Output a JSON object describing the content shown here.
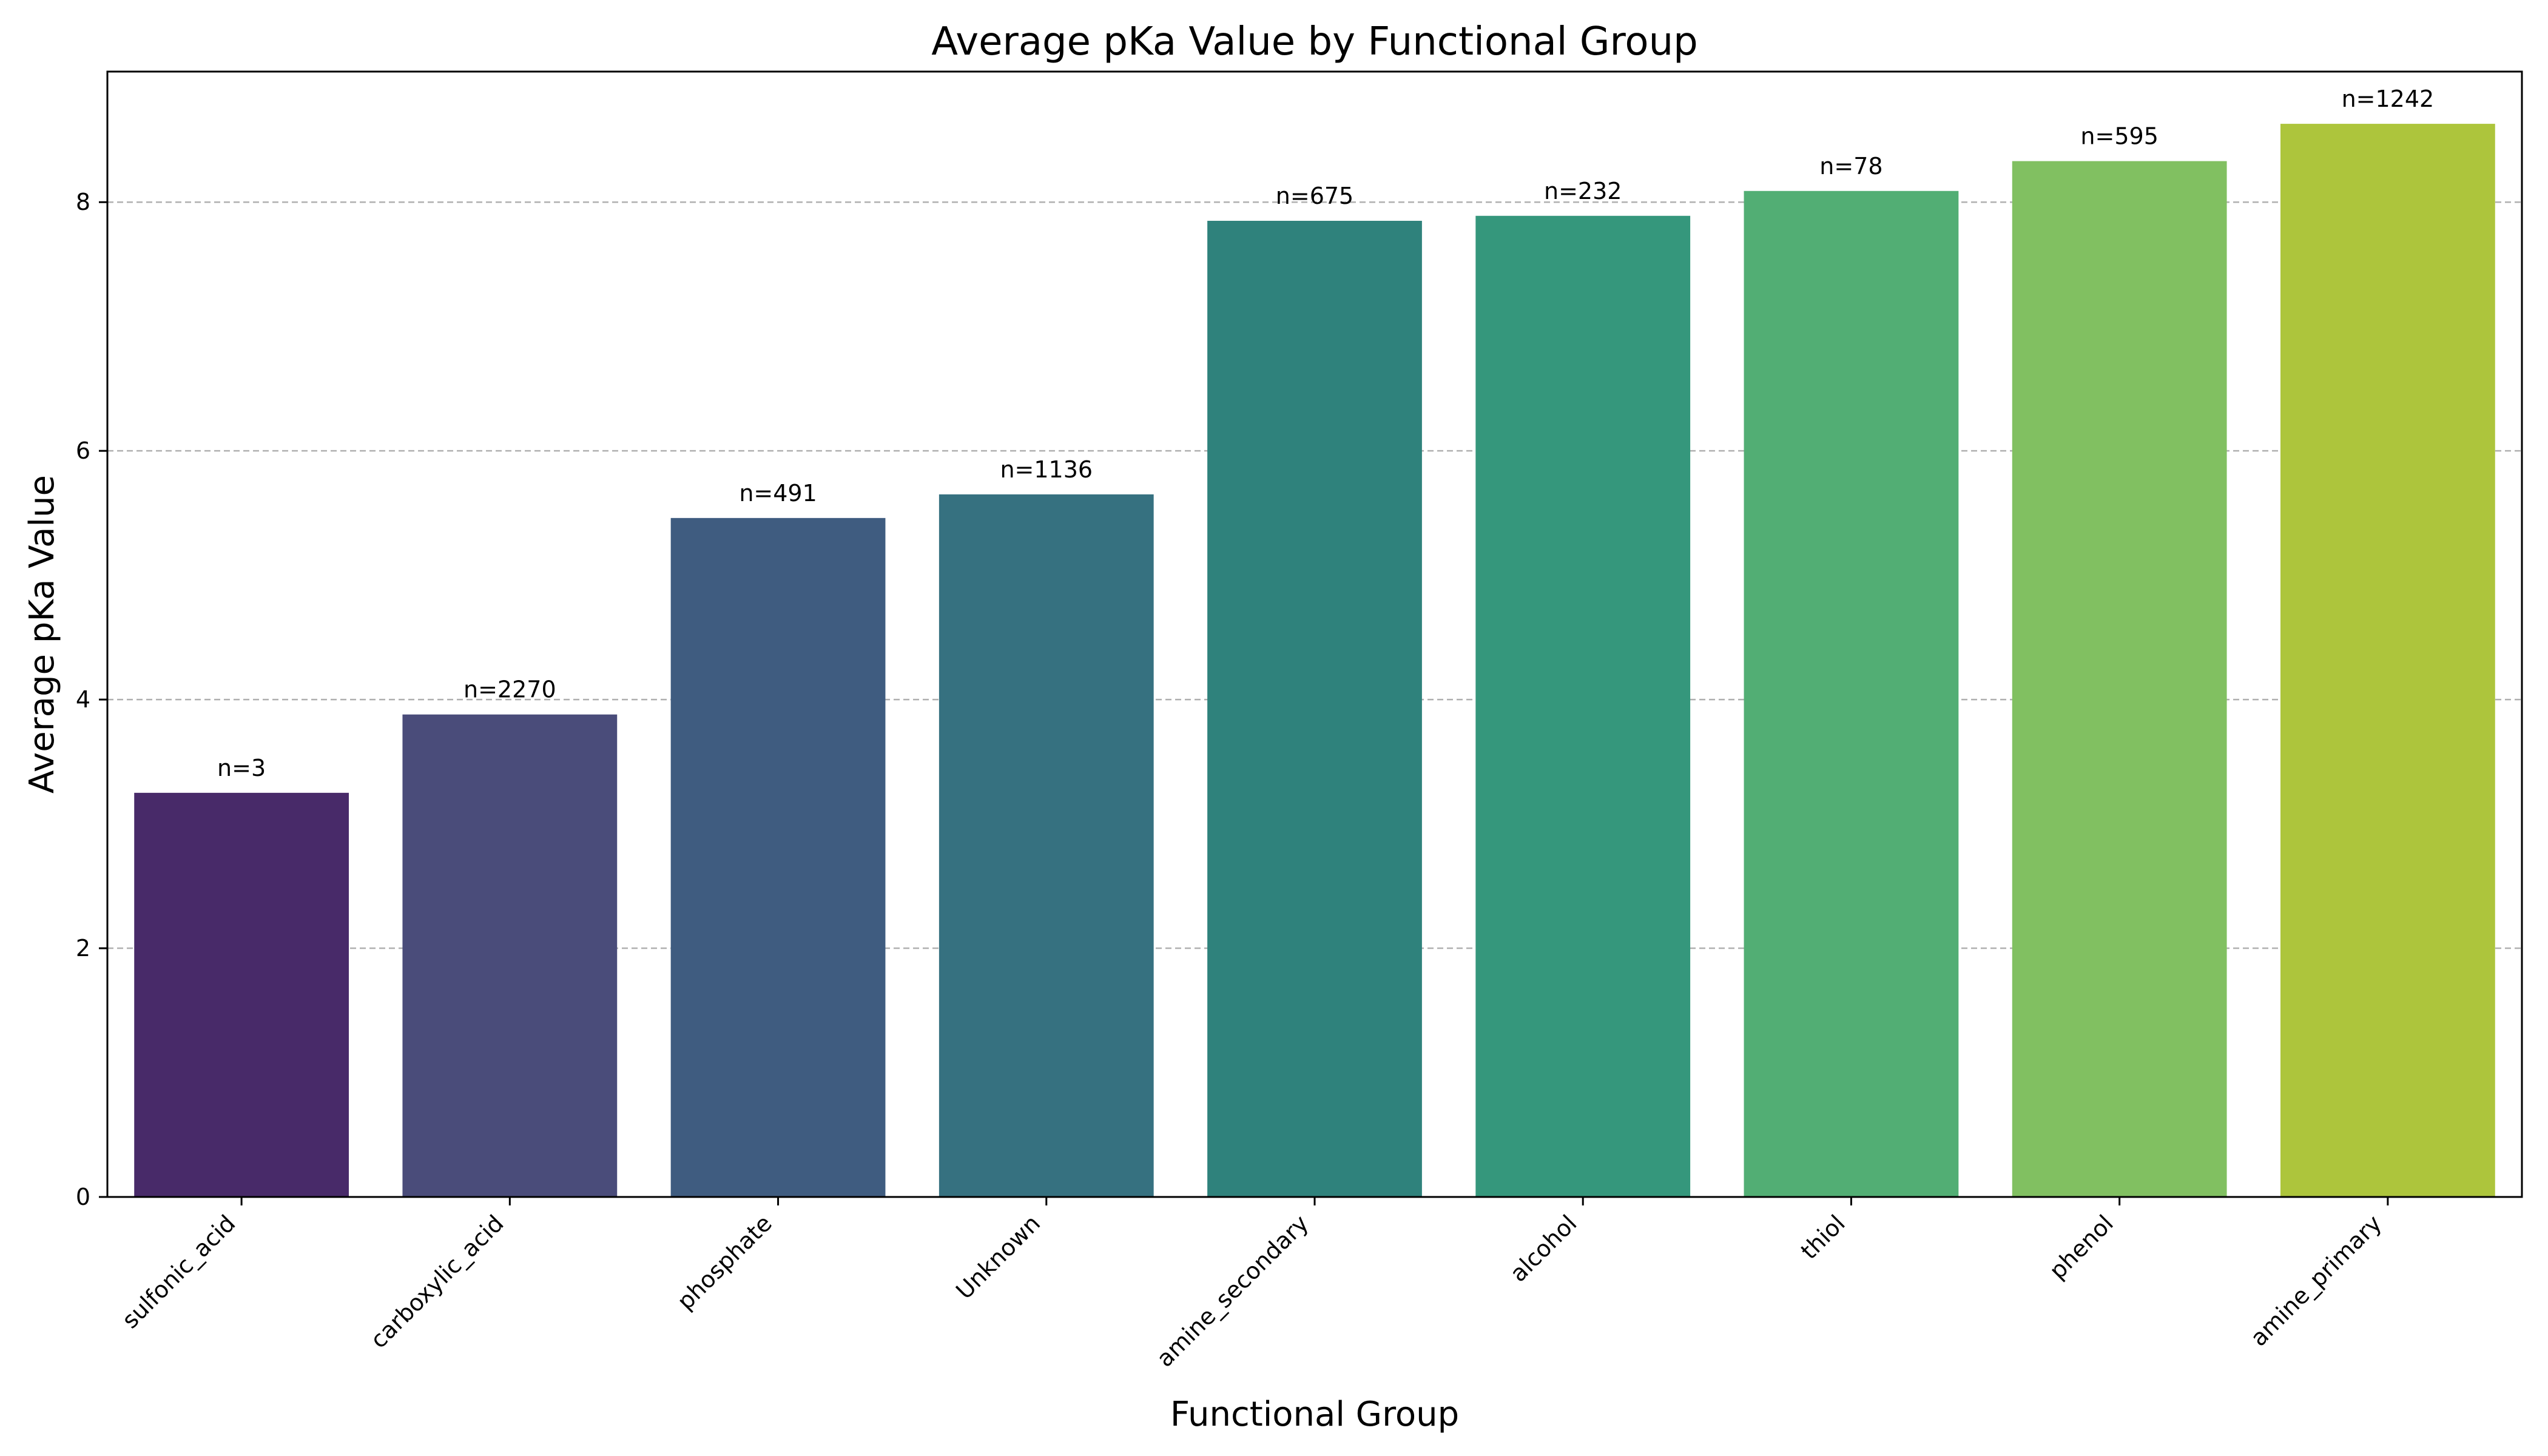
{
  "chart_data": {
    "type": "bar",
    "title": "Average pKa Value by Functional Group",
    "xlabel": "Functional Group",
    "ylabel": "Average pKa Value",
    "categories": [
      "sulfonic_acid",
      "carboxylic_acid",
      "phosphate",
      "Unknown",
      "amine_secondary",
      "alcohol",
      "thiol",
      "phenol",
      "amine_primary"
    ],
    "values": [
      3.25,
      3.88,
      5.46,
      5.65,
      7.85,
      7.89,
      8.09,
      8.33,
      8.63
    ],
    "data_labels": [
      "n=3",
      "n=2270",
      "n=491",
      "n=1136",
      "n=675",
      "n=232",
      "n=78",
      "n=595",
      "n=1242"
    ],
    "colors": [
      "#482a69",
      "#4a4c7a",
      "#3f5c80",
      "#367180",
      "#2f827c",
      "#35977c",
      "#52ae74",
      "#81c061",
      "#adc53c"
    ],
    "ylim": [
      0,
      9.05
    ],
    "yticks": [
      0,
      2,
      4,
      6,
      8
    ],
    "grid": "y-dashed",
    "legend": "none"
  }
}
